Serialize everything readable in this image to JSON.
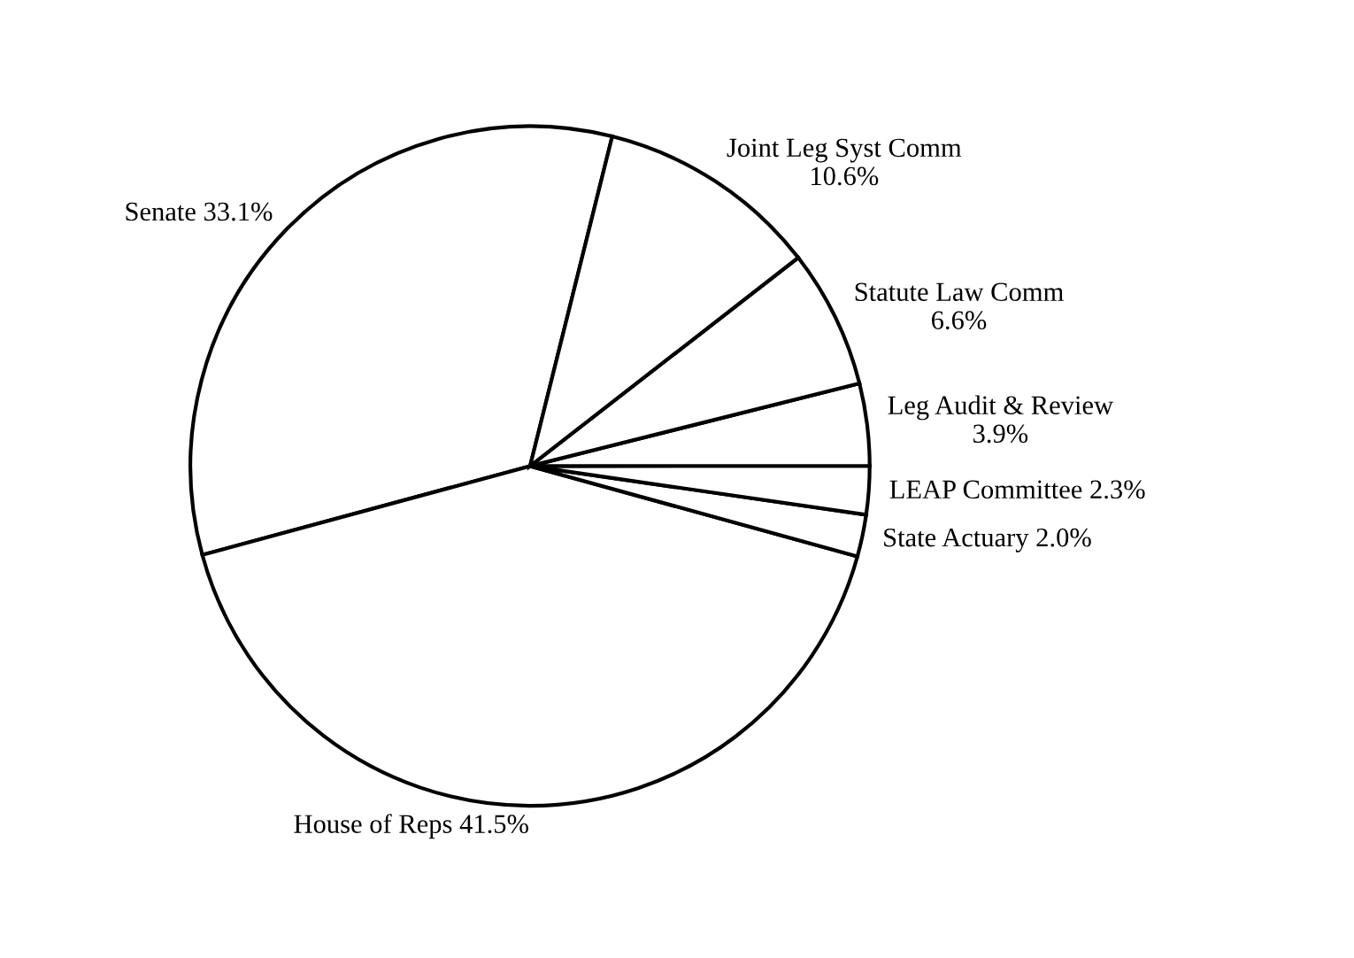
{
  "chart_data": {
    "type": "pie",
    "categories": [
      "Senate",
      "House of Reps",
      "State Actuary",
      "LEAP Committee",
      "Leg Audit & Review",
      "Statute Law Comm",
      "Joint Leg Syst Comm"
    ],
    "values": [
      33.1,
      41.5,
      2.0,
      2.3,
      3.9,
      6.6,
      10.6
    ],
    "value_labels": [
      "33.1%",
      "41.5%",
      "2.0%",
      "2.3%",
      "3.9%",
      "6.6%",
      "10.6%"
    ],
    "colors": [
      "#ffffff",
      "#ffffff",
      "#ffffff",
      "#ffffff",
      "#ffffff",
      "#ffffff",
      "#ffffff"
    ]
  }
}
